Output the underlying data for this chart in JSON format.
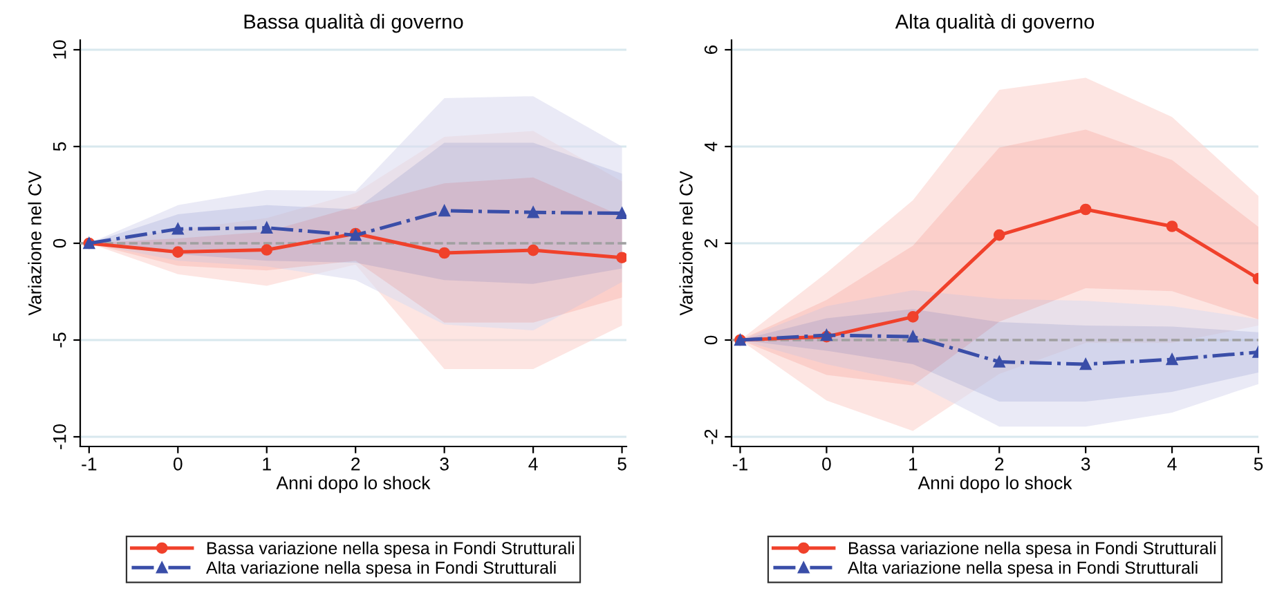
{
  "chart_data": [
    {
      "type": "line",
      "title": "Bassa qualità di governo",
      "xlabel": "Anni dopo lo shock",
      "ylabel": "Variazione nel CV",
      "x": [
        -1,
        0,
        1,
        2,
        3,
        4,
        5
      ],
      "xlim": [
        -1.1,
        5.05
      ],
      "xticks": [
        -1,
        0,
        1,
        2,
        3,
        4,
        5
      ],
      "ylim": [
        -10.5,
        10.5
      ],
      "yticks": [
        -10,
        -5,
        0,
        5,
        10
      ],
      "grid": "y",
      "legend": "bottom",
      "ref_lines": [
        {
          "axis": "y",
          "value": 0,
          "color": "#a0a0a0",
          "line_style": "dashed"
        }
      ],
      "series": [
        {
          "type": "area",
          "color": "#fbd3cf",
          "values": [
            null,
            null,
            null,
            null,
            null,
            null,
            null
          ],
          "lower": [
            0,
            -1.6,
            -2.2,
            -1.1,
            -6.5,
            -6.5,
            -4.25
          ],
          "upper": [
            0,
            0.7,
            1.3,
            2.6,
            5.5,
            5.8,
            3.2
          ]
        },
        {
          "type": "area",
          "color": "#dcdcf0",
          "values": [
            null,
            null,
            null,
            null,
            null,
            null,
            null
          ],
          "lower": [
            0,
            -0.9,
            -1.2,
            -1.9,
            -4.2,
            -4.5,
            -2.0
          ],
          "upper": [
            0,
            1.97,
            2.75,
            2.7,
            7.5,
            7.6,
            5.0
          ]
        },
        {
          "name": "Bassa variazione nella spesa in Fondi Strutturali",
          "color": "#f0412b",
          "marker": "circle",
          "line_style": "solid",
          "values": [
            0,
            -0.45,
            -0.34,
            0.5,
            -0.5,
            -0.36,
            -0.74
          ],
          "lower": [
            0,
            -1.16,
            -1.4,
            -0.9,
            -4.1,
            -4.1,
            -2.8
          ],
          "upper": [
            0,
            0.25,
            0.6,
            1.9,
            3.1,
            3.4,
            1.4
          ]
        },
        {
          "name": "Alta variazione nella spesa in Fondi Strutturali",
          "color": "#3a4ea8",
          "marker": "triangle",
          "line_style": "dashdot",
          "values": [
            0,
            0.74,
            0.8,
            0.42,
            1.68,
            1.6,
            1.55
          ],
          "lower": [
            0,
            -0.56,
            -0.9,
            -1.0,
            -1.9,
            -2.1,
            -1.3
          ],
          "upper": [
            0,
            1.5,
            1.97,
            1.75,
            5.2,
            5.2,
            3.6
          ]
        }
      ]
    },
    {
      "type": "line",
      "title": "Alta qualità di governo",
      "xlabel": "Anni dopo lo shock",
      "ylabel": "Variazione nel CV",
      "x": [
        -1,
        0,
        1,
        2,
        3,
        4,
        5
      ],
      "xlim": [
        -1.1,
        5.0
      ],
      "xticks": [
        -1,
        0,
        1,
        2,
        3,
        4,
        5
      ],
      "ylim": [
        -2.2,
        6.2
      ],
      "yticks": [
        -2,
        0,
        2,
        4,
        6
      ],
      "grid": "y",
      "legend": "bottom",
      "ref_lines": [
        {
          "axis": "y",
          "value": 0,
          "color": "#a0a0a0",
          "line_style": "dashed"
        }
      ],
      "series": [
        {
          "type": "area",
          "color": "#fbd3cf",
          "values": [
            null,
            null,
            null,
            null,
            null,
            null,
            null
          ],
          "lower": [
            0,
            -1.25,
            -1.88,
            -0.7,
            -0.06,
            -0.06,
            0.3
          ],
          "upper": [
            0,
            1.39,
            2.89,
            5.17,
            5.42,
            4.61,
            2.98
          ]
        },
        {
          "type": "area",
          "color": "#dcdcf0",
          "values": [
            null,
            null,
            null,
            null,
            null,
            null,
            null
          ],
          "lower": [
            0,
            -0.5,
            -0.87,
            -1.79,
            -1.79,
            -1.5,
            -0.91
          ],
          "upper": [
            0,
            0.7,
            1.03,
            0.85,
            0.81,
            0.7,
            0.43
          ]
        },
        {
          "name": "Bassa variazione nella spesa in Fondi Strutturali",
          "color": "#f0412b",
          "marker": "circle",
          "line_style": "solid",
          "values": [
            0,
            0.07,
            0.48,
            2.17,
            2.7,
            2.35,
            1.27
          ],
          "lower": [
            0,
            -0.72,
            -0.94,
            0.38,
            1.07,
            1.01,
            0.43
          ],
          "upper": [
            0,
            0.83,
            1.95,
            3.98,
            4.35,
            3.72,
            2.34
          ]
        },
        {
          "name": "Alta variazione nella spesa in Fondi Strutturali",
          "color": "#3a4ea8",
          "marker": "triangle",
          "line_style": "dashdot",
          "values": [
            0,
            0.1,
            0.07,
            -0.45,
            -0.5,
            -0.4,
            -0.25
          ],
          "lower": [
            0,
            -0.22,
            -0.5,
            -1.27,
            -1.27,
            -1.07,
            -0.67
          ],
          "upper": [
            0,
            0.45,
            0.64,
            0.37,
            0.3,
            0.28,
            0.16
          ]
        }
      ]
    }
  ]
}
